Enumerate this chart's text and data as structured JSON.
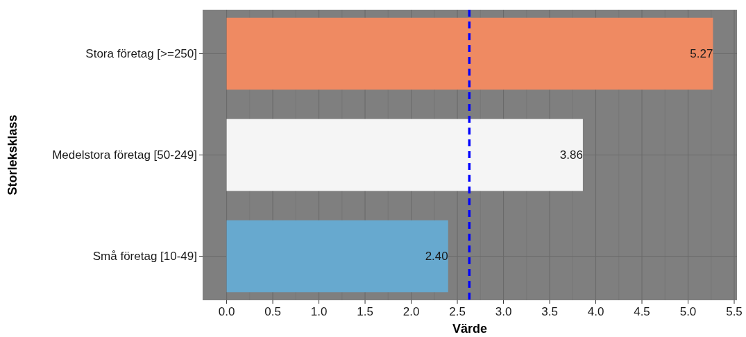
{
  "chart_data": {
    "type": "bar",
    "orientation": "horizontal",
    "xlabel": "Värde",
    "ylabel": "Storleksklass",
    "categories": [
      "Stora företag [>=250]",
      "Medelstora företag [50-249]",
      "Små företag [10-49]"
    ],
    "values": [
      5.27,
      3.86,
      2.4
    ],
    "colors": [
      "#ef8a62",
      "#f5f5f5",
      "#67a9cf"
    ],
    "value_labels": [
      "5.27",
      "3.86",
      "2.40"
    ],
    "xlim": [
      -0.26,
      5.53
    ],
    "xticks": [
      {
        "value": 0,
        "label": "0.0"
      },
      {
        "value": 0.5,
        "label": "0.5"
      },
      {
        "value": 1,
        "label": "1.0"
      },
      {
        "value": 1.5,
        "label": "1.5"
      },
      {
        "value": 2,
        "label": "2.0"
      },
      {
        "value": 2.5,
        "label": "2.5"
      },
      {
        "value": 3,
        "label": "3.0"
      },
      {
        "value": 3.5,
        "label": "3.5"
      },
      {
        "value": 4,
        "label": "4.0"
      },
      {
        "value": 4.5,
        "label": "4.5"
      },
      {
        "value": 5,
        "label": "5.0"
      },
      {
        "value": 5.5,
        "label": "5.5"
      }
    ],
    "ref_lines": [
      {
        "axis": "x",
        "value": 2.63,
        "color": "#0000ff",
        "line_style": "dashed"
      }
    ],
    "grid": true
  }
}
